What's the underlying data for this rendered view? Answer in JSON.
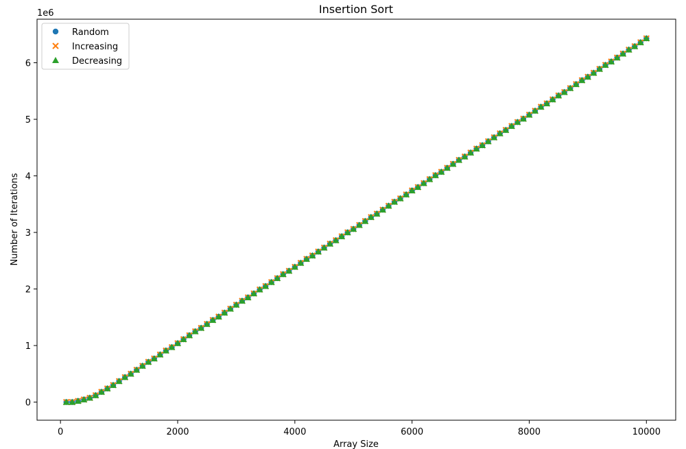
{
  "chart_data": {
    "type": "scatter",
    "title": "Insertion Sort",
    "xlabel": "Array Size",
    "ylabel": "Number of Iterations",
    "y_scale_label": "1e6",
    "xlim": [
      -400,
      10500
    ],
    "ylim": [
      -320000,
      6770000
    ],
    "xticks": [
      0,
      2000,
      4000,
      6000,
      8000,
      10000
    ],
    "xtick_labels": [
      "0",
      "2000",
      "4000",
      "6000",
      "8000",
      "10000"
    ],
    "yticks": [
      0,
      1000000,
      2000000,
      3000000,
      4000000,
      5000000,
      6000000
    ],
    "ytick_labels": [
      "0",
      "1",
      "2",
      "3",
      "4",
      "5",
      "6"
    ],
    "grid": false,
    "legend_position": "top-left",
    "x": [
      100,
      200,
      300,
      400,
      500,
      600,
      700,
      800,
      900,
      1000,
      1100,
      1200,
      1300,
      1400,
      1500,
      1600,
      1700,
      1800,
      1900,
      2000,
      2100,
      2200,
      2300,
      2400,
      2500,
      2600,
      2700,
      2800,
      2900,
      3000,
      3100,
      3200,
      3300,
      3400,
      3500,
      3600,
      3700,
      3800,
      3900,
      4000,
      4100,
      4200,
      4300,
      4400,
      4500,
      4600,
      4700,
      4800,
      4900,
      5000,
      5100,
      5200,
      5300,
      5400,
      5500,
      5600,
      5700,
      5800,
      5900,
      6000,
      6100,
      6200,
      6300,
      6400,
      6500,
      6600,
      6700,
      6800,
      6900,
      7000,
      7100,
      7200,
      7300,
      7400,
      7500,
      7600,
      7700,
      7800,
      7900,
      8000,
      8100,
      8200,
      8300,
      8400,
      8500,
      8600,
      8700,
      8800,
      8900,
      9000,
      9100,
      9200,
      9300,
      9400,
      9500,
      9600,
      9700,
      9800,
      9900,
      10000
    ],
    "values": [
      0,
      0,
      20000,
      45000,
      75000,
      120000,
      180000,
      240000,
      300000,
      370000,
      440000,
      500000,
      570000,
      640000,
      710000,
      770000,
      840000,
      910000,
      970000,
      1040000,
      1110000,
      1180000,
      1250000,
      1310000,
      1380000,
      1450000,
      1510000,
      1580000,
      1650000,
      1720000,
      1790000,
      1850000,
      1920000,
      1990000,
      2050000,
      2120000,
      2190000,
      2260000,
      2320000,
      2390000,
      2460000,
      2530000,
      2590000,
      2660000,
      2730000,
      2800000,
      2860000,
      2930000,
      3000000,
      3060000,
      3130000,
      3200000,
      3270000,
      3330000,
      3400000,
      3470000,
      3540000,
      3600000,
      3670000,
      3740000,
      3800000,
      3870000,
      3940000,
      4010000,
      4070000,
      4140000,
      4210000,
      4280000,
      4340000,
      4410000,
      4480000,
      4540000,
      4610000,
      4680000,
      4750000,
      4810000,
      4880000,
      4950000,
      5010000,
      5080000,
      5150000,
      5220000,
      5280000,
      5350000,
      5420000,
      5480000,
      5550000,
      5620000,
      5690000,
      5750000,
      5820000,
      5890000,
      5960000,
      6020000,
      6090000,
      6160000,
      6230000,
      6290000,
      6360000,
      6430000
    ],
    "series": [
      {
        "name": "Random",
        "marker": "circle",
        "color": "#1f77b4"
      },
      {
        "name": "Increasing",
        "marker": "x",
        "color": "#ff7f0e"
      },
      {
        "name": "Decreasing",
        "marker": "triangle",
        "color": "#2ca02c"
      }
    ]
  }
}
